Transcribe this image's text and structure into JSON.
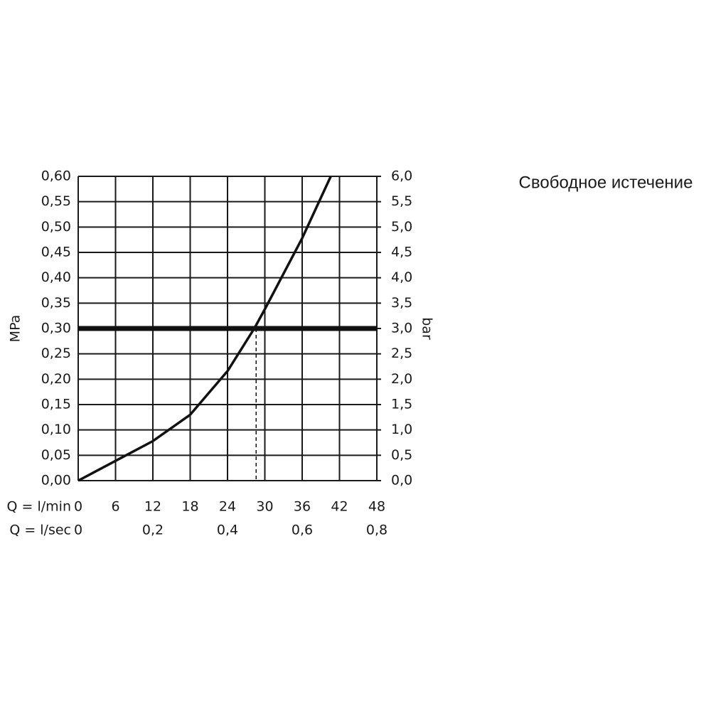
{
  "chart_data": {
    "type": "line",
    "annotation": "Свободное истечение",
    "ylabel": "MPa",
    "y2label": "bar",
    "xlabel": "Q = l/min",
    "x2label": "Q = l/sec",
    "x": [
      0,
      6,
      12,
      18,
      24,
      28.3,
      30,
      36,
      40.6
    ],
    "values": [
      0,
      0.039,
      0.078,
      0.13,
      0.216,
      0.3,
      0.338,
      0.478,
      0.6
    ],
    "color": "#111111",
    "reference_y": 0.3,
    "reference_x": 28.6,
    "xlim": [
      0,
      48
    ],
    "xticks": [
      0,
      6,
      12,
      18,
      24,
      30,
      36,
      42,
      48
    ],
    "x2lim": [
      0,
      0.8
    ],
    "x2ticks": [
      0,
      {
        "value": 0.2,
        "label": "0,2"
      },
      {
        "value": 0.4,
        "label": "0,4"
      },
      {
        "value": 0.6,
        "label": "0,6"
      },
      {
        "value": 0.8,
        "label": "0,8"
      }
    ],
    "ylim": [
      0,
      0.6
    ],
    "yticks": [
      {
        "value": 0,
        "label": "0,00"
      },
      {
        "value": 0.05,
        "label": "0,05"
      },
      {
        "value": 0.1,
        "label": "0,10"
      },
      {
        "value": 0.15,
        "label": "0,15"
      },
      {
        "value": 0.2,
        "label": "0,20"
      },
      {
        "value": 0.25,
        "label": "0,25"
      },
      {
        "value": 0.3,
        "label": "0,30"
      },
      {
        "value": 0.35,
        "label": "0,35"
      },
      {
        "value": 0.4,
        "label": "0,40"
      },
      {
        "value": 0.45,
        "label": "0,45"
      },
      {
        "value": 0.5,
        "label": "0,50"
      },
      {
        "value": 0.55,
        "label": "0,55"
      },
      {
        "value": 0.6,
        "label": "0,60"
      }
    ],
    "y2lim": [
      0,
      6
    ],
    "y2ticks": [
      {
        "value": 0,
        "label": "0,0"
      },
      {
        "value": 0.5,
        "label": "0,5"
      },
      {
        "value": 1,
        "label": "1,0"
      },
      {
        "value": 1.5,
        "label": "1,5"
      },
      {
        "value": 2,
        "label": "2,0"
      },
      {
        "value": 2.5,
        "label": "2,5"
      },
      {
        "value": 3,
        "label": "3,0"
      },
      {
        "value": 3.5,
        "label": "3,5"
      },
      {
        "value": 4,
        "label": "4,0"
      },
      {
        "value": 4.5,
        "label": "4,5"
      },
      {
        "value": 5,
        "label": "5,0"
      },
      {
        "value": 5.5,
        "label": "5,5"
      },
      {
        "value": 6,
        "label": "6,0"
      }
    ],
    "grid": true
  }
}
